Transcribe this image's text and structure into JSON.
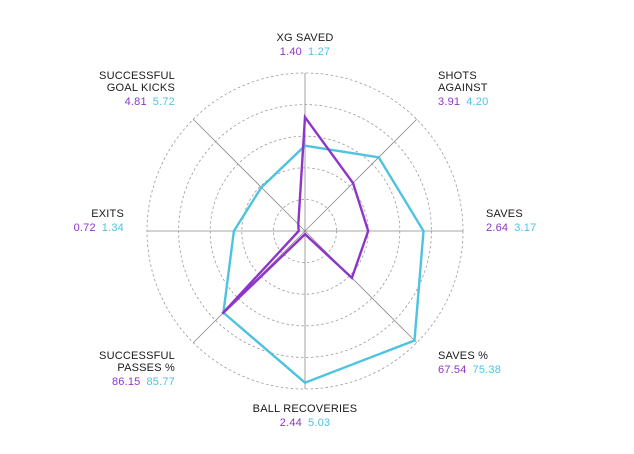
{
  "chart_data": {
    "type": "radar",
    "axes": [
      {
        "name": "XG SAVED",
        "a": 1.4,
        "b": 1.27,
        "a_label": "1.40",
        "b_label": "1.27",
        "a_r": 0.72,
        "b_r": 0.54
      },
      {
        "name": "SHOTS AGAINST",
        "a": 3.91,
        "b": 4.2,
        "a_label": "3.91",
        "b_label": "4.20",
        "a_r": 0.43,
        "b_r": 0.66
      },
      {
        "name": "SAVES",
        "a": 2.64,
        "b": 3.17,
        "a_label": "2.64",
        "b_label": "3.17",
        "a_r": 0.4,
        "b_r": 0.75
      },
      {
        "name": "SAVES %",
        "a": 67.54,
        "b": 75.38,
        "a_label": "67.54",
        "b_label": "75.38",
        "a_r": 0.42,
        "b_r": 0.98
      },
      {
        "name": "BALL RECOVERIES",
        "a": 2.44,
        "b": 5.03,
        "a_label": "2.44",
        "b_label": "5.03",
        "a_r": 0.02,
        "b_r": 0.96
      },
      {
        "name": "SUCCESSFUL PASSES %",
        "a": 86.15,
        "b": 85.77,
        "a_label": "86.15",
        "b_label": "85.77",
        "a_r": 0.74,
        "b_r": 0.73
      },
      {
        "name": "EXITS",
        "a": 0.72,
        "b": 1.34,
        "a_label": "0.72",
        "b_label": "1.34",
        "a_r": 0.04,
        "b_r": 0.45
      },
      {
        "name": "SUCCESSFUL GOAL KICKS",
        "a": 4.81,
        "b": 5.72,
        "a_label": "4.81",
        "b_label": "5.72",
        "a_r": 0.06,
        "b_r": 0.39
      }
    ],
    "label_lines": [
      [
        "XG SAVED"
      ],
      [
        "SHOTS",
        "AGAINST"
      ],
      [
        "SAVES"
      ],
      [
        "SAVES %"
      ],
      [
        "BALL RECOVERIES"
      ],
      [
        "SUCCESSFUL",
        "PASSES %"
      ],
      [
        "EXITS"
      ],
      [
        "SUCCESSFUL",
        "GOAL KICKS"
      ]
    ],
    "rings": 5,
    "grid": true,
    "series_colors": {
      "a": "#8e35c9",
      "b": "#4ec3e0"
    }
  }
}
